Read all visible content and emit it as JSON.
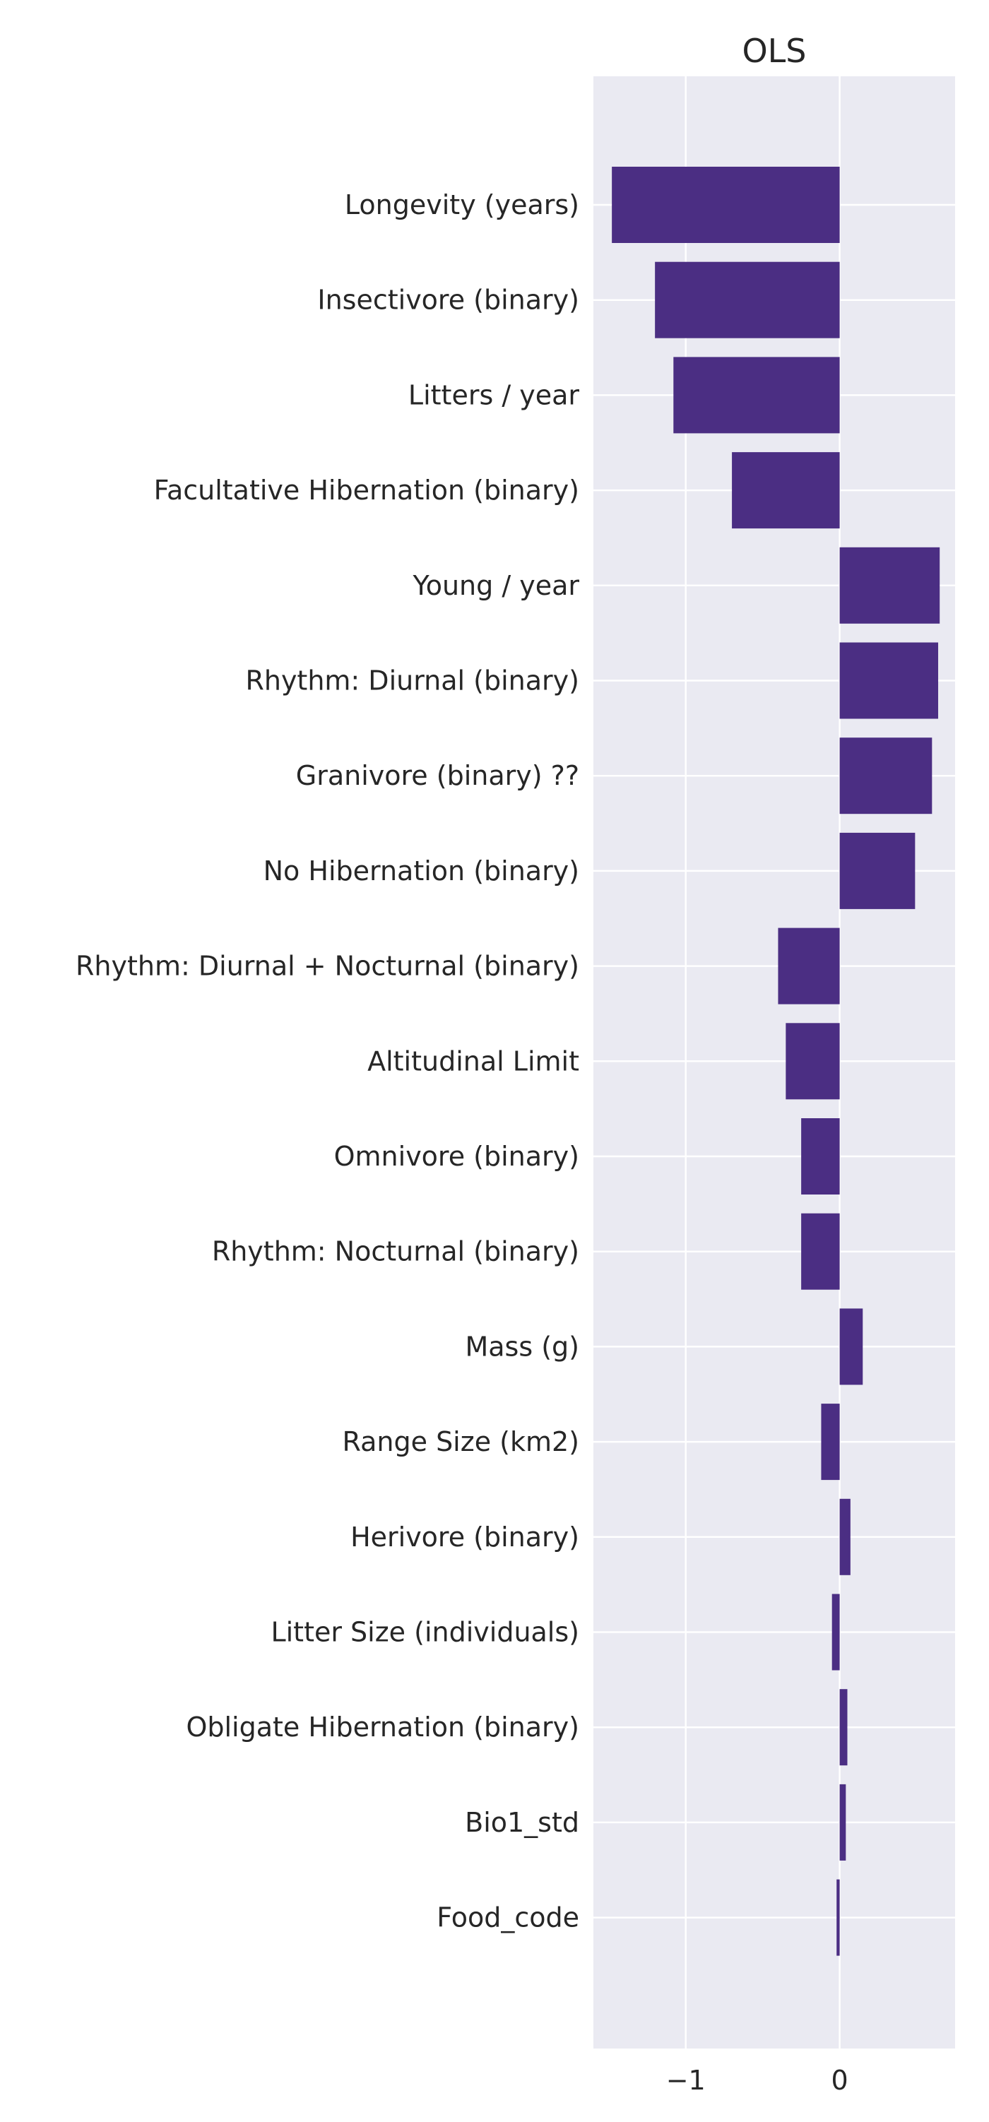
{
  "chart_data": {
    "type": "bar",
    "orientation": "horizontal",
    "title": "OLS",
    "xlabel": "",
    "ylabel": "",
    "categories": [
      "Longevity (years)",
      "Insectivore (binary)",
      "Litters / year",
      "Facultative Hibernation (binary) ",
      "Young / year",
      "Rhythm: Diurnal (binary)",
      "Granivore (binary) ??",
      "No Hibernation (binary)",
      "Rhythm: Diurnal + Nocturnal (binary)",
      "Altitudinal Limit",
      "Omnivore (binary)",
      "Rhythm: Nocturnal (binary)",
      "Mass (g)",
      "Range Size (km2)",
      "Herivore (binary)",
      "Litter Size (individuals)",
      "Obligate Hibernation (binary)",
      "Bio1_std",
      "Food_code"
    ],
    "values": [
      -1.48,
      -1.2,
      -1.08,
      -0.7,
      0.65,
      0.64,
      0.6,
      0.49,
      -0.4,
      -0.35,
      -0.25,
      -0.25,
      0.15,
      -0.12,
      0.07,
      -0.05,
      0.05,
      0.04,
      -0.02
    ],
    "xlim": [
      -1.6,
      0.75
    ],
    "xticks": [
      -1,
      0
    ],
    "xtick_labels": [
      "−1",
      "0"
    ],
    "grid": true,
    "legend": "none",
    "colors": {
      "bar": "#4b2e83",
      "plot_background": "#eaeaf2",
      "grid": "#ffffff",
      "text": "#262626"
    }
  }
}
